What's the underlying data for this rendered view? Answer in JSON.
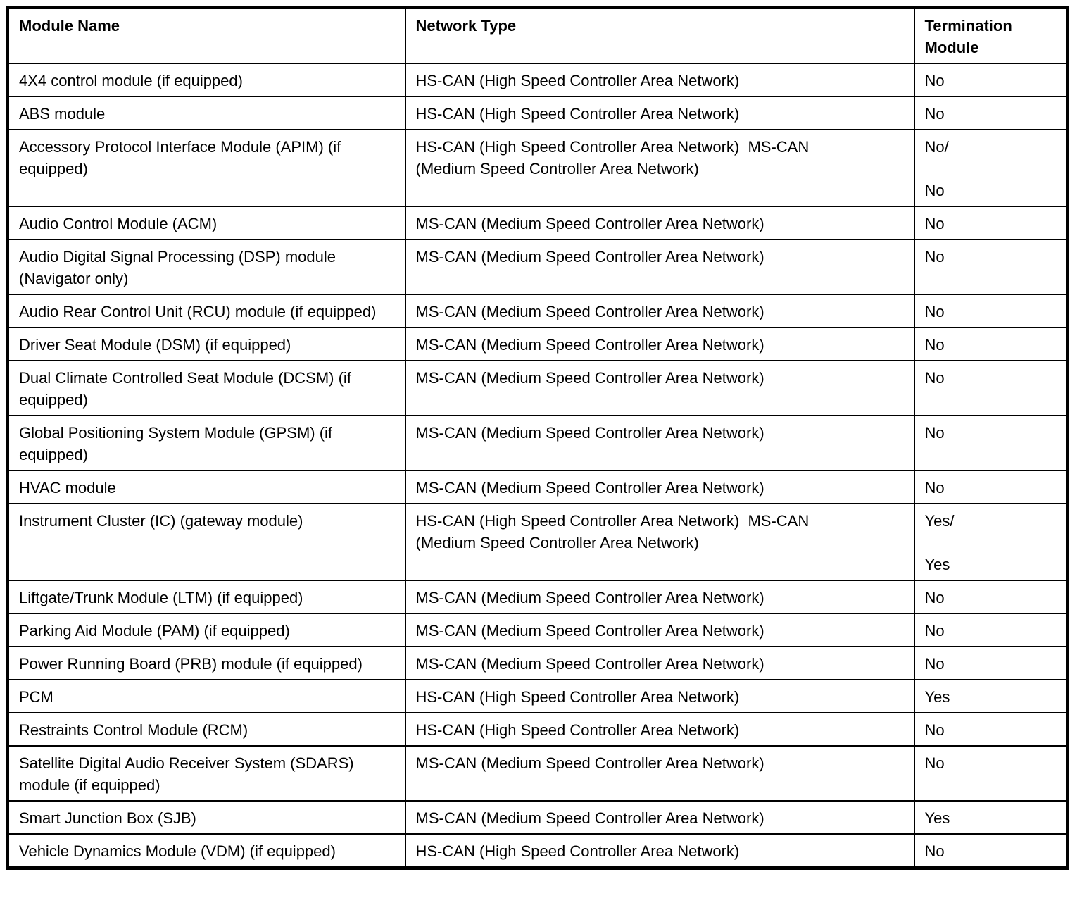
{
  "table": {
    "columns": [
      {
        "label": "Module Name"
      },
      {
        "label": "Network Type"
      },
      {
        "label": "Termination Module"
      }
    ],
    "rows": [
      {
        "module": "4X4 control module (if equipped)",
        "network": "HS-CAN (High Speed Controller Area Network)",
        "termination": "No"
      },
      {
        "module": "ABS module",
        "network": "HS-CAN (High Speed Controller Area Network)",
        "termination": "No"
      },
      {
        "module": "Accessory Protocol Interface Module (APIM) (if equipped)",
        "network": "HS-CAN (High Speed Controller Area Network)  MS-CAN\n(Medium Speed Controller Area Network)",
        "termination": "No/\n\nNo"
      },
      {
        "module": "Audio Control Module (ACM)",
        "network": "MS-CAN (Medium Speed Controller Area Network)",
        "termination": "No"
      },
      {
        "module": "Audio Digital Signal Processing (DSP) module (Navigator only)",
        "network": "MS-CAN (Medium Speed Controller Area Network)",
        "termination": "No"
      },
      {
        "module": "Audio Rear Control Unit (RCU) module (if equipped)",
        "network": "MS-CAN (Medium Speed Controller Area Network)",
        "termination": "No"
      },
      {
        "module": "Driver Seat Module (DSM) (if equipped)",
        "network": "MS-CAN (Medium Speed Controller Area Network)",
        "termination": "No"
      },
      {
        "module": "Dual Climate Controlled Seat Module (DCSM) (if equipped)",
        "network": "MS-CAN (Medium Speed Controller Area Network)",
        "termination": "No"
      },
      {
        "module": "Global Positioning System Module (GPSM) (if equipped)",
        "network": "MS-CAN (Medium Speed Controller Area Network)",
        "termination": "No"
      },
      {
        "module": "HVAC module",
        "network": "MS-CAN (Medium Speed Controller Area Network)",
        "termination": "No"
      },
      {
        "module": "Instrument Cluster (IC) (gateway module)",
        "network": "HS-CAN (High Speed Controller Area Network)  MS-CAN\n(Medium Speed Controller Area Network)",
        "termination": "Yes/\n\nYes"
      },
      {
        "module": "Liftgate/Trunk Module (LTM) (if equipped)",
        "network": "MS-CAN (Medium Speed Controller Area Network)",
        "termination": "No"
      },
      {
        "module": "Parking Aid Module (PAM) (if equipped)",
        "network": "MS-CAN (Medium Speed Controller Area Network)",
        "termination": "No"
      },
      {
        "module": "Power Running Board (PRB) module (if equipped)",
        "network": "MS-CAN (Medium Speed Controller Area Network)",
        "termination": "No"
      },
      {
        "module": "PCM",
        "network": "HS-CAN (High Speed Controller Area Network)",
        "termination": "Yes"
      },
      {
        "module": "Restraints Control Module (RCM)",
        "network": "HS-CAN (High Speed Controller Area Network)",
        "termination": "No"
      },
      {
        "module": "Satellite Digital Audio Receiver System (SDARS) module (if equipped)",
        "network": "MS-CAN (Medium Speed Controller Area Network)",
        "termination": "No"
      },
      {
        "module": "Smart Junction Box (SJB)",
        "network": "MS-CAN (Medium Speed Controller Area Network)",
        "termination": "Yes"
      },
      {
        "module": "Vehicle Dynamics Module (VDM) (if equipped)",
        "network": "HS-CAN (High Speed Controller Area Network)",
        "termination": "No"
      }
    ]
  }
}
